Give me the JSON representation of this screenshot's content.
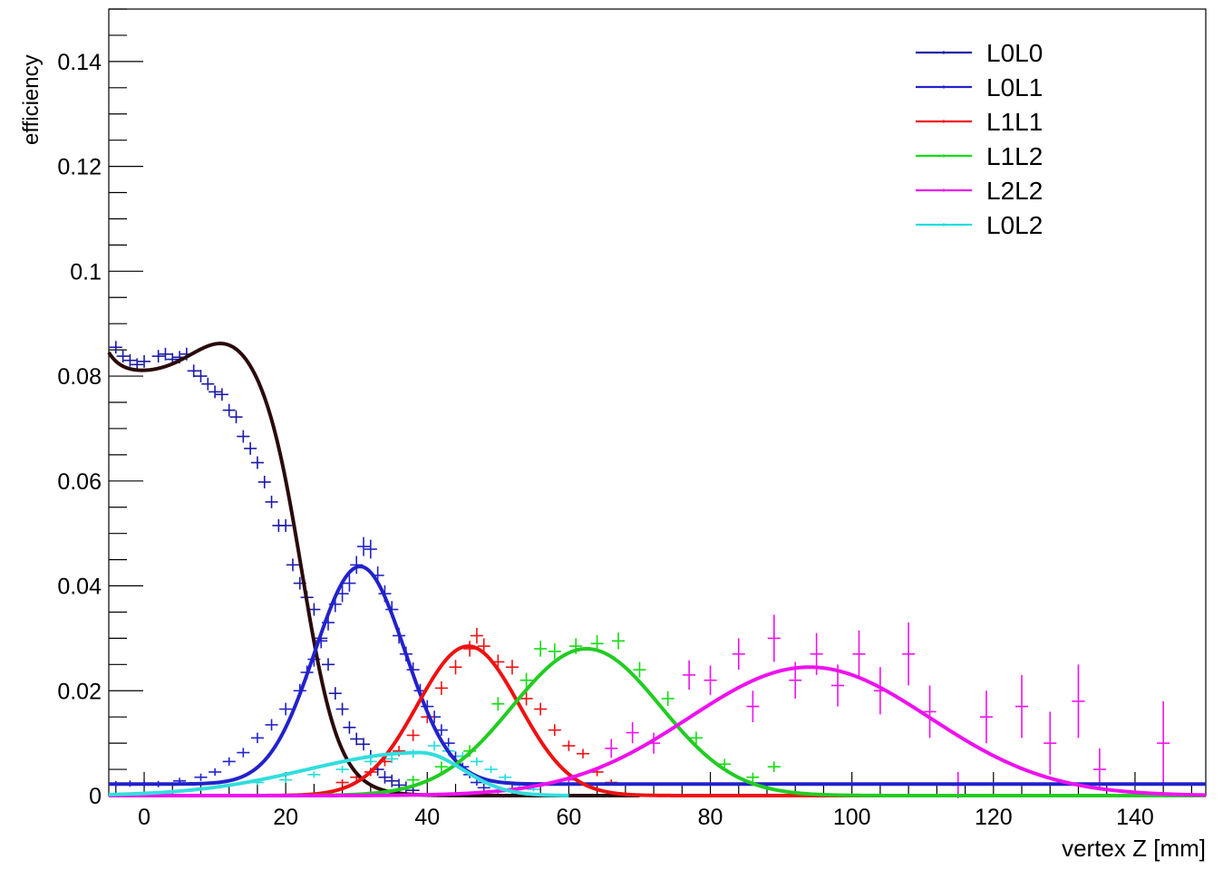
{
  "chart_data": {
    "type": "scatter",
    "title": "",
    "xlabel": "vertex Z [mm]",
    "ylabel": "efficiency",
    "xlim": [
      -5,
      150
    ],
    "ylim": [
      0,
      0.15
    ],
    "x_ticks": [
      0,
      20,
      40,
      60,
      80,
      100,
      120,
      140
    ],
    "x_tick_labels": [
      "0",
      "20",
      "40",
      "60",
      "80",
      "100",
      "120",
      "140"
    ],
    "y_ticks": [
      0,
      0.02,
      0.04,
      0.06,
      0.08,
      0.1,
      0.12,
      0.14
    ],
    "y_tick_labels": [
      "0",
      "0.02",
      "0.04",
      "0.06",
      "0.08",
      "0.1",
      "0.12",
      "0.14"
    ],
    "legend_position": "top-right",
    "grid": false,
    "series": [
      {
        "name": "L0L0",
        "marker_color": "#1a1aa6",
        "fit_color": "#2b0a0a",
        "points": [
          {
            "x": -4,
            "y": 0.0855,
            "ey": 0.0012
          },
          {
            "x": -3,
            "y": 0.0838,
            "ey": 0.0012
          },
          {
            "x": -2,
            "y": 0.083,
            "ey": 0.0012
          },
          {
            "x": -1,
            "y": 0.0822,
            "ey": 0.0012
          },
          {
            "x": 0,
            "y": 0.0828,
            "ey": 0.0012
          },
          {
            "x": 2,
            "y": 0.0838,
            "ey": 0.0012
          },
          {
            "x": 3,
            "y": 0.0842,
            "ey": 0.0012
          },
          {
            "x": 4,
            "y": 0.0832,
            "ey": 0.0012
          },
          {
            "x": 5,
            "y": 0.0836,
            "ey": 0.0012
          },
          {
            "x": 6,
            "y": 0.0842,
            "ey": 0.0012
          },
          {
            "x": 7,
            "y": 0.081,
            "ey": 0.0012
          },
          {
            "x": 8,
            "y": 0.08,
            "ey": 0.0012
          },
          {
            "x": 9,
            "y": 0.0785,
            "ey": 0.0012
          },
          {
            "x": 10,
            "y": 0.077,
            "ey": 0.0012
          },
          {
            "x": 11,
            "y": 0.0765,
            "ey": 0.0012
          },
          {
            "x": 12,
            "y": 0.0735,
            "ey": 0.0012
          },
          {
            "x": 13,
            "y": 0.0722,
            "ey": 0.0012
          },
          {
            "x": 14,
            "y": 0.0685,
            "ey": 0.0012
          },
          {
            "x": 15,
            "y": 0.0662,
            "ey": 0.0012
          },
          {
            "x": 16,
            "y": 0.0635,
            "ey": 0.0012
          },
          {
            "x": 17,
            "y": 0.0598,
            "ey": 0.0012
          },
          {
            "x": 18,
            "y": 0.056,
            "ey": 0.0012
          },
          {
            "x": 19,
            "y": 0.0515,
            "ey": 0.0012
          },
          {
            "x": 20,
            "y": 0.0515,
            "ey": 0.0012
          },
          {
            "x": 21,
            "y": 0.044,
            "ey": 0.0012
          },
          {
            "x": 22,
            "y": 0.0405,
            "ey": 0.0012
          },
          {
            "x": 23,
            "y": 0.0378,
            "ey": 0.0012
          },
          {
            "x": 24,
            "y": 0.0355,
            "ey": 0.0012
          },
          {
            "x": 25,
            "y": 0.03,
            "ey": 0.0012
          },
          {
            "x": 26,
            "y": 0.025,
            "ey": 0.0012
          },
          {
            "x": 27,
            "y": 0.0195,
            "ey": 0.0012
          },
          {
            "x": 28,
            "y": 0.0165,
            "ey": 0.0012
          },
          {
            "x": 29,
            "y": 0.013,
            "ey": 0.0012
          },
          {
            "x": 30,
            "y": 0.0108,
            "ey": 0.0012
          },
          {
            "x": 31,
            "y": 0.0098,
            "ey": 0.0012
          },
          {
            "x": 32,
            "y": 0.0075,
            "ey": 0.0012
          },
          {
            "x": 33,
            "y": 0.005,
            "ey": 0.0012
          },
          {
            "x": 34,
            "y": 0.0035,
            "ey": 0.0012
          },
          {
            "x": 35,
            "y": 0.0028,
            "ey": 0.0012
          },
          {
            "x": 36,
            "y": 0.002,
            "ey": 0.0012
          },
          {
            "x": 37,
            "y": 0.0015,
            "ey": 0.0012
          },
          {
            "x": 38,
            "y": 0.001,
            "ey": 0.0012
          }
        ],
        "fit": {
          "a": 0.0805,
          "b": 0.0068,
          "x0": -5,
          "s0": 1.8,
          "c": 12.0,
          "w": 5.0
        }
      },
      {
        "name": "L0L1",
        "marker_color": "#2222cc",
        "fit_color": "#2222cc",
        "points": [
          {
            "x": -4,
            "y": 0.0022,
            "ey": 0.0006
          },
          {
            "x": -2,
            "y": 0.0023,
            "ey": 0.0006
          },
          {
            "x": 0,
            "y": 0.0023,
            "ey": 0.0006
          },
          {
            "x": 2,
            "y": 0.0022,
            "ey": 0.0006
          },
          {
            "x": 5,
            "y": 0.0028,
            "ey": 0.0006
          },
          {
            "x": 8,
            "y": 0.0035,
            "ey": 0.0007
          },
          {
            "x": 10,
            "y": 0.0045,
            "ey": 0.0007
          },
          {
            "x": 12,
            "y": 0.0065,
            "ey": 0.0008
          },
          {
            "x": 14,
            "y": 0.0082,
            "ey": 0.0009
          },
          {
            "x": 16,
            "y": 0.011,
            "ey": 0.001
          },
          {
            "x": 18,
            "y": 0.0135,
            "ey": 0.0011
          },
          {
            "x": 20,
            "y": 0.0165,
            "ey": 0.0012
          },
          {
            "x": 22,
            "y": 0.02,
            "ey": 0.0013
          },
          {
            "x": 23,
            "y": 0.0235,
            "ey": 0.0013
          },
          {
            "x": 24,
            "y": 0.026,
            "ey": 0.0014
          },
          {
            "x": 25,
            "y": 0.0295,
            "ey": 0.0014
          },
          {
            "x": 26,
            "y": 0.033,
            "ey": 0.0015
          },
          {
            "x": 27,
            "y": 0.0365,
            "ey": 0.0015
          },
          {
            "x": 28,
            "y": 0.0385,
            "ey": 0.0016
          },
          {
            "x": 29,
            "y": 0.0405,
            "ey": 0.0016
          },
          {
            "x": 30,
            "y": 0.044,
            "ey": 0.0017
          },
          {
            "x": 31,
            "y": 0.0475,
            "ey": 0.0018
          },
          {
            "x": 32,
            "y": 0.047,
            "ey": 0.0018
          },
          {
            "x": 33,
            "y": 0.042,
            "ey": 0.0017
          },
          {
            "x": 34,
            "y": 0.0385,
            "ey": 0.0016
          },
          {
            "x": 35,
            "y": 0.0355,
            "ey": 0.0016
          },
          {
            "x": 36,
            "y": 0.0305,
            "ey": 0.0015
          },
          {
            "x": 37,
            "y": 0.027,
            "ey": 0.0014
          },
          {
            "x": 38,
            "y": 0.024,
            "ey": 0.0014
          },
          {
            "x": 39,
            "y": 0.02,
            "ey": 0.0013
          },
          {
            "x": 40,
            "y": 0.017,
            "ey": 0.0012
          },
          {
            "x": 41,
            "y": 0.015,
            "ey": 0.0012
          },
          {
            "x": 42,
            "y": 0.0125,
            "ey": 0.0011
          },
          {
            "x": 43,
            "y": 0.01,
            "ey": 0.001
          },
          {
            "x": 44,
            "y": 0.0075,
            "ey": 0.0009
          },
          {
            "x": 45,
            "y": 0.0055,
            "ey": 0.0008
          },
          {
            "x": 46,
            "y": 0.004,
            "ey": 0.0007
          },
          {
            "x": 47,
            "y": 0.0025,
            "ey": 0.0006
          },
          {
            "x": 48,
            "y": 0.0015,
            "ey": 0.0005
          },
          {
            "x": 50,
            "y": 0.0008,
            "ey": 0.0004
          }
        ],
        "fit": {
          "amp": 0.0415,
          "mu": 30.5,
          "sigma": 6.4,
          "base": 0.0022
        }
      },
      {
        "name": "L1L1",
        "marker_color": "#ee1111",
        "fit_color": "#ee1111",
        "points": [
          {
            "x": 28,
            "y": 0.0025,
            "ey": 0.0006
          },
          {
            "x": 30,
            "y": 0.0035,
            "ey": 0.0007
          },
          {
            "x": 32,
            "y": 0.0045,
            "ey": 0.0008
          },
          {
            "x": 34,
            "y": 0.0065,
            "ey": 0.0009
          },
          {
            "x": 36,
            "y": 0.0085,
            "ey": 0.001
          },
          {
            "x": 38,
            "y": 0.0115,
            "ey": 0.0011
          },
          {
            "x": 40,
            "y": 0.015,
            "ey": 0.0012
          },
          {
            "x": 42,
            "y": 0.0205,
            "ey": 0.0013
          },
          {
            "x": 44,
            "y": 0.0245,
            "ey": 0.0014
          },
          {
            "x": 46,
            "y": 0.028,
            "ey": 0.0015
          },
          {
            "x": 47,
            "y": 0.0305,
            "ey": 0.0015
          },
          {
            "x": 48,
            "y": 0.0285,
            "ey": 0.0015
          },
          {
            "x": 50,
            "y": 0.0255,
            "ey": 0.0014
          },
          {
            "x": 52,
            "y": 0.0245,
            "ey": 0.0014
          },
          {
            "x": 54,
            "y": 0.0185,
            "ey": 0.0013
          },
          {
            "x": 56,
            "y": 0.0165,
            "ey": 0.0012
          },
          {
            "x": 58,
            "y": 0.0125,
            "ey": 0.0011
          },
          {
            "x": 60,
            "y": 0.0095,
            "ey": 0.001
          },
          {
            "x": 62,
            "y": 0.008,
            "ey": 0.0009
          },
          {
            "x": 64,
            "y": 0.0045,
            "ey": 0.0008
          },
          {
            "x": 66,
            "y": 0.0025,
            "ey": 0.0006
          }
        ],
        "fit": {
          "amp": 0.0285,
          "mu": 45.8,
          "sigma": 7.2,
          "base": 0
        }
      },
      {
        "name": "L1L2",
        "marker_color": "#11dd11",
        "fit_color": "#22cc22",
        "points": [
          {
            "x": 38,
            "y": 0.003,
            "ey": 0.0008
          },
          {
            "x": 42,
            "y": 0.0055,
            "ey": 0.001
          },
          {
            "x": 46,
            "y": 0.0085,
            "ey": 0.0011
          },
          {
            "x": 50,
            "y": 0.0175,
            "ey": 0.0013
          },
          {
            "x": 54,
            "y": 0.022,
            "ey": 0.0014
          },
          {
            "x": 56,
            "y": 0.028,
            "ey": 0.0015
          },
          {
            "x": 58,
            "y": 0.0275,
            "ey": 0.0015
          },
          {
            "x": 61,
            "y": 0.0285,
            "ey": 0.0015
          },
          {
            "x": 64,
            "y": 0.029,
            "ey": 0.0016
          },
          {
            "x": 67,
            "y": 0.0295,
            "ey": 0.0016
          },
          {
            "x": 70,
            "y": 0.024,
            "ey": 0.0015
          },
          {
            "x": 74,
            "y": 0.0185,
            "ey": 0.0014
          },
          {
            "x": 78,
            "y": 0.011,
            "ey": 0.0012
          },
          {
            "x": 82,
            "y": 0.006,
            "ey": 0.001
          },
          {
            "x": 86,
            "y": 0.0035,
            "ey": 0.0009
          },
          {
            "x": 89,
            "y": 0.0055,
            "ey": 0.001
          }
        ],
        "fit": {
          "amp": 0.028,
          "mu": 62.5,
          "sigma": 10.5,
          "base": 0
        }
      },
      {
        "name": "L2L2",
        "marker_color": "#ee11ee",
        "fit_color": "#ee11ee",
        "points": [
          {
            "x": 60,
            "y": 0.003,
            "ey": 0.0012
          },
          {
            "x": 66,
            "y": 0.009,
            "ey": 0.0018
          },
          {
            "x": 69,
            "y": 0.012,
            "ey": 0.002
          },
          {
            "x": 72,
            "y": 0.01,
            "ey": 0.002
          },
          {
            "x": 77,
            "y": 0.023,
            "ey": 0.0028
          },
          {
            "x": 80,
            "y": 0.022,
            "ey": 0.0028
          },
          {
            "x": 84,
            "y": 0.027,
            "ey": 0.003
          },
          {
            "x": 86,
            "y": 0.017,
            "ey": 0.003
          },
          {
            "x": 89,
            "y": 0.03,
            "ey": 0.0045
          },
          {
            "x": 92,
            "y": 0.022,
            "ey": 0.0035
          },
          {
            "x": 95,
            "y": 0.027,
            "ey": 0.004
          },
          {
            "x": 98,
            "y": 0.021,
            "ey": 0.004
          },
          {
            "x": 101,
            "y": 0.027,
            "ey": 0.0045
          },
          {
            "x": 104,
            "y": 0.02,
            "ey": 0.0045
          },
          {
            "x": 108,
            "y": 0.027,
            "ey": 0.006
          },
          {
            "x": 111,
            "y": 0.016,
            "ey": 0.005
          },
          {
            "x": 115,
            "y": 0.002,
            "ey": 0.0025
          },
          {
            "x": 119,
            "y": 0.015,
            "ey": 0.005
          },
          {
            "x": 124,
            "y": 0.017,
            "ey": 0.006
          },
          {
            "x": 128,
            "y": 0.01,
            "ey": 0.006
          },
          {
            "x": 132,
            "y": 0.018,
            "ey": 0.007
          },
          {
            "x": 135,
            "y": 0.005,
            "ey": 0.004
          },
          {
            "x": 144,
            "y": 0.01,
            "ey": 0.008
          }
        ],
        "fit": {
          "amp": 0.0245,
          "mu": 94.0,
          "sigma": 17.0,
          "base": 0
        }
      },
      {
        "name": "L0L2",
        "marker_color": "#22dddd",
        "fit_color": "#33dddd",
        "points": [
          {
            "x": 16,
            "y": 0.0025,
            "ey": 0.0005
          },
          {
            "x": 20,
            "y": 0.003,
            "ey": 0.0006
          },
          {
            "x": 24,
            "y": 0.004,
            "ey": 0.0006
          },
          {
            "x": 28,
            "y": 0.005,
            "ey": 0.0007
          },
          {
            "x": 32,
            "y": 0.0065,
            "ey": 0.0007
          },
          {
            "x": 35,
            "y": 0.007,
            "ey": 0.0008
          },
          {
            "x": 38,
            "y": 0.008,
            "ey": 0.0008
          },
          {
            "x": 41,
            "y": 0.0095,
            "ey": 0.0009
          },
          {
            "x": 43,
            "y": 0.0085,
            "ey": 0.0009
          },
          {
            "x": 45,
            "y": 0.0075,
            "ey": 0.0008
          },
          {
            "x": 47,
            "y": 0.0065,
            "ey": 0.0008
          },
          {
            "x": 49,
            "y": 0.005,
            "ey": 0.0007
          },
          {
            "x": 51,
            "y": 0.0035,
            "ey": 0.0006
          },
          {
            "x": 53,
            "y": 0.002,
            "ey": 0.0005
          },
          {
            "x": 55,
            "y": 0.0012,
            "ey": 0.0004
          }
        ],
        "fit": {
          "amp": 0.0082,
          "mu": 39.0,
          "sigma": 16.0,
          "sigma_right": 6.0,
          "base": 0
        }
      }
    ]
  }
}
